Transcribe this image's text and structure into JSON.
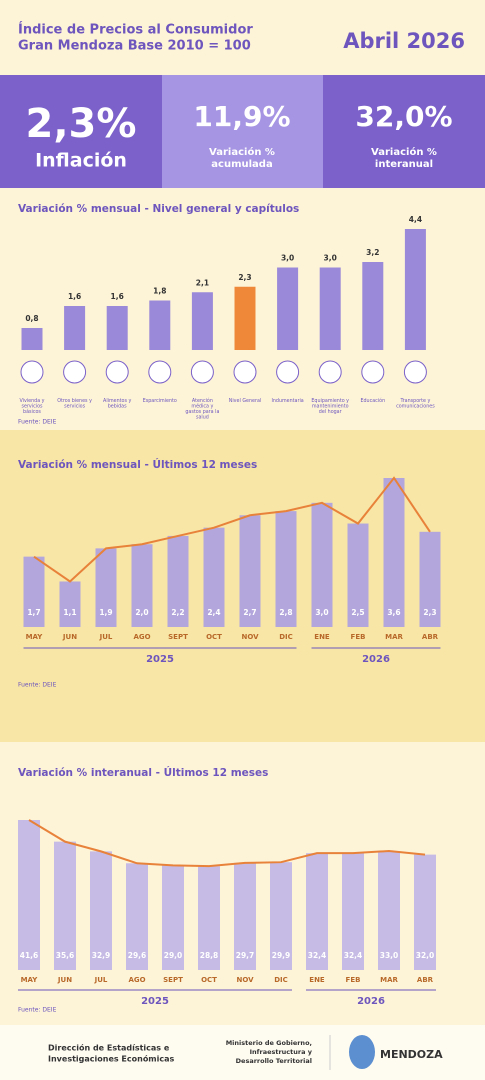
{
  "header": {
    "title_lines": [
      "Índice de Precios al Consumidor",
      "Gran Mendoza Base 2010 = 100"
    ],
    "period": "Abril 2026"
  },
  "kpis": [
    {
      "value": "2,3%",
      "label_lines": [
        "Inflación"
      ]
    },
    {
      "value": "11,9%",
      "label_lines": [
        "Variación %",
        "acumulada"
      ]
    },
    {
      "value": "32,0%",
      "label_lines": [
        "Variación %",
        "interanual"
      ]
    }
  ],
  "chart_data": [
    {
      "type": "bar",
      "title": "Variación % mensual - Nivel general y capítulos",
      "source": "Fuente: DEIE",
      "categories": [
        "Vivienda y servicios básicos",
        "Otros bienes y servicios",
        "Alimentos y bebidas",
        "Esparcimiento",
        "Atención médica y gastos para la salud",
        "Nivel General",
        "Indumentaria",
        "Equipamiento y mantenimiento del hogar",
        "Educación",
        "Transporte y comunicaciones"
      ],
      "values": [
        0.8,
        1.6,
        1.6,
        1.8,
        2.1,
        2.3,
        3.0,
        3.0,
        3.2,
        4.4
      ],
      "value_labels": [
        "0,8",
        "1,6",
        "1,6",
        "1,8",
        "2,1",
        "2,3",
        "3,0",
        "3,0",
        "3,2",
        "4,4"
      ],
      "colors": [
        "#9a88d8",
        "#9a88d8",
        "#9a88d8",
        "#9a88d8",
        "#9a88d8",
        "#f0883a",
        "#9a88d8",
        "#9a88d8",
        "#9a88d8",
        "#9a88d8"
      ]
    },
    {
      "type": "bar",
      "title": "Variación % mensual - Últimos 12 meses",
      "source": "Fuente: DEIE",
      "categories": [
        "MAY",
        "JUN",
        "JUL",
        "AGO",
        "SEPT",
        "OCT",
        "NOV",
        "DIC",
        "ENE",
        "FEB",
        "MAR",
        "ABR"
      ],
      "values": [
        1.7,
        1.1,
        1.9,
        2.0,
        2.2,
        2.4,
        2.7,
        2.8,
        3.0,
        2.5,
        3.6,
        2.3
      ],
      "value_labels": [
        "1,7",
        "1,1",
        "1,9",
        "2,0",
        "2,2",
        "2,4",
        "2,7",
        "2,8",
        "3,0",
        "2,5",
        "3,6",
        "2,3"
      ],
      "color": "#b3a6dc",
      "line_color": "#e8823a",
      "overlay_line": true,
      "groups": [
        {
          "label": "2025",
          "count": 8
        },
        {
          "label": "2026",
          "count": 4
        }
      ]
    },
    {
      "type": "bar",
      "title": "Variación % interanual - Últimos 12 meses",
      "source": "Fuente: DEIE",
      "categories": [
        "MAY",
        "JUN",
        "JUL",
        "AGO",
        "SEPT",
        "OCT",
        "NOV",
        "DIC",
        "ENE",
        "FEB",
        "MAR",
        "ABR"
      ],
      "values": [
        41.6,
        35.6,
        32.9,
        29.6,
        29.0,
        28.8,
        29.7,
        29.9,
        32.4,
        32.4,
        33.0,
        32.0
      ],
      "value_labels": [
        "41,6",
        "35,6",
        "32,9",
        "29,6",
        "29,0",
        "28,8",
        "29,7",
        "29,9",
        "32,4",
        "32,4",
        "33,0",
        "32,0"
      ],
      "color": "#c6bbe5",
      "line_color": "#e8823a",
      "overlay_line": true,
      "groups": [
        {
          "label": "2025",
          "count": 8
        },
        {
          "label": "2026",
          "count": 4
        }
      ]
    }
  ],
  "footer": {
    "left_lines": [
      "Dirección de Estadísticas e",
      "Investigaciones Económicas"
    ],
    "right_lines": [
      "Ministerio de Gobierno,",
      "Infraestructura y",
      "Desarrollo Territorial"
    ],
    "brand": "MENDOZA"
  }
}
